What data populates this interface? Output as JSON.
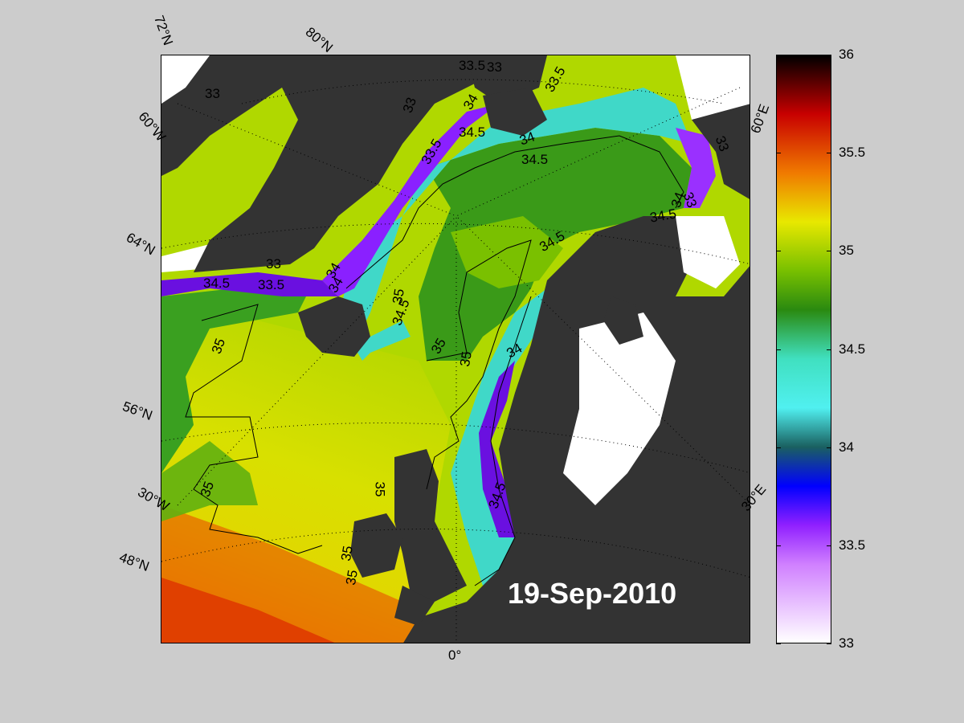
{
  "date": "19-Sep-2010",
  "lat_labels": [
    "72°N",
    "80°N",
    "60°W",
    "64°N",
    "56°N",
    "30°W",
    "48°N"
  ],
  "lon_labels": [
    "0°",
    "30°E",
    "60°E"
  ],
  "contour_labels": [
    "33",
    "33.5",
    "33",
    "33.5",
    "33",
    "34",
    "34.5",
    "34",
    "34.5",
    "33.5",
    "33",
    "34",
    "34.5",
    "33",
    "34.5",
    "33.5",
    "34",
    "34.5",
    "35",
    "35",
    "35",
    "34",
    "35",
    "35",
    "35",
    "35",
    "34.5",
    "35",
    "34.5",
    "34",
    "33"
  ],
  "colorbar": {
    "ticks": [
      "36",
      "35.5",
      "35",
      "34.5",
      "34",
      "33.5",
      "33"
    ],
    "min": 33,
    "max": 36,
    "colors": {
      "36": "#000000",
      "35.7": "#c80000",
      "35.4": "#f07a00",
      "35.15": "#e8e800",
      "34.9": "#78c000",
      "34.7": "#2a8a10",
      "34.45": "#40e0c0",
      "34.2": "#50f0f0",
      "34.0": "#1a6060",
      "33.8": "#0000ff",
      "33.6": "#9020ff",
      "33.4": "#d080ff",
      "33": "#ffffff"
    }
  }
}
